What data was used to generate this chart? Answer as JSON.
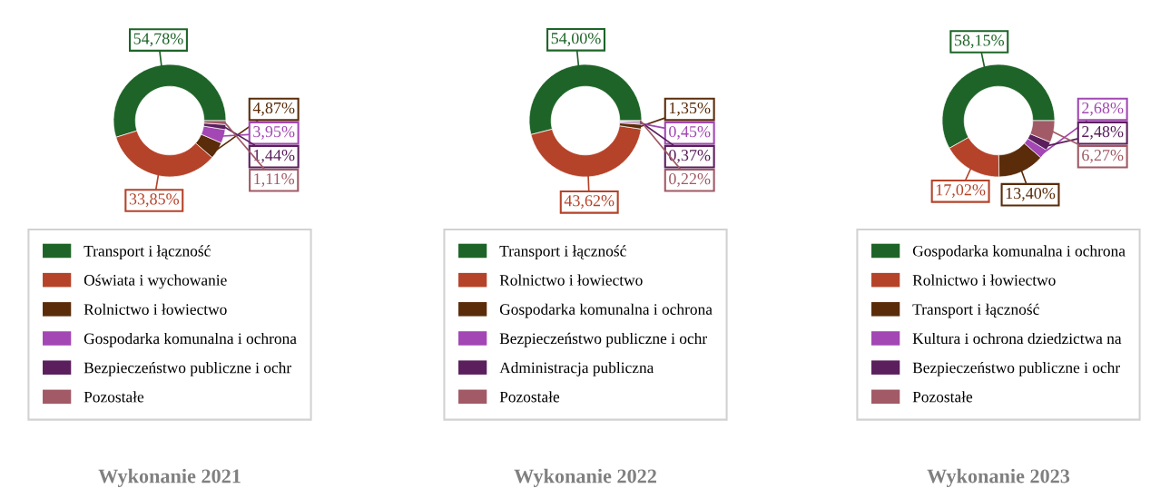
{
  "chart_data": [
    {
      "type": "donut",
      "title": "Wykonanie 2021",
      "legend": "bottom",
      "categories": [
        "Transport i łączność",
        "Oświata i wychowanie",
        "Rolnictwo i łowiectwo",
        "Gospodarka komunalna i ochrona",
        "Bezpieczeństwo publiczne i ochr",
        "Pozostałe"
      ],
      "values": [
        54.78,
        33.85,
        4.87,
        3.95,
        1.44,
        1.11
      ],
      "value_labels": [
        "54,78%",
        "33,85%",
        "4,87%",
        "3,95%",
        "1,44%",
        "1,11%"
      ],
      "colors": [
        "#1e6428",
        "#b5432a",
        "#5a2c0a",
        "#a247b3",
        "#5a1f5c",
        "#a15a66"
      ]
    },
    {
      "type": "donut",
      "title": "Wykonanie 2022",
      "legend": "bottom",
      "categories": [
        "Transport i łączność",
        "Rolnictwo i łowiectwo",
        "Gospodarka komunalna i ochrona",
        "Bezpieczeństwo publiczne i ochr",
        "Administracja publiczna",
        "Pozostałe"
      ],
      "values": [
        54.0,
        43.62,
        1.35,
        0.45,
        0.37,
        0.22
      ],
      "value_labels": [
        "54,00%",
        "43,62%",
        "1,35%",
        "0,45%",
        "0,37%",
        "0,22%"
      ],
      "colors": [
        "#1e6428",
        "#b5432a",
        "#5a2c0a",
        "#a247b3",
        "#5a1f5c",
        "#a15a66"
      ]
    },
    {
      "type": "donut",
      "title": "Wykonanie 2023",
      "legend": "bottom",
      "categories": [
        "Gospodarka komunalna i ochrona",
        "Rolnictwo i łowiectwo",
        "Transport i łączność",
        "Kultura i ochrona dziedzictwa na",
        "Bezpieczeństwo publiczne i ochr",
        "Pozostałe"
      ],
      "values": [
        58.15,
        17.02,
        13.4,
        2.68,
        2.48,
        6.27
      ],
      "value_labels": [
        "58,15%",
        "17,02%",
        "13,40%",
        "2,68%",
        "2,48%",
        "6,27%"
      ],
      "colors": [
        "#1e6428",
        "#b5432a",
        "#5a2c0a",
        "#a247b3",
        "#5a1f5c",
        "#a15a66"
      ]
    }
  ]
}
